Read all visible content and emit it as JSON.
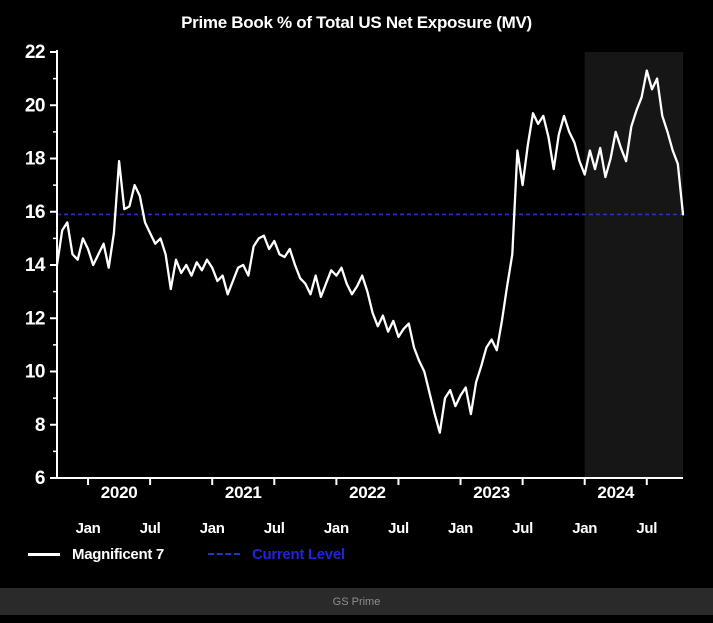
{
  "header": {
    "title": "Prime Book % of Total US Net Exposure (MV)"
  },
  "footer": {
    "label": "GS Prime"
  },
  "legend": [
    {
      "label": "Magnificent 7",
      "color": "#ffffff",
      "style": "solid"
    },
    {
      "label": "Current Level",
      "color": "#2222dd",
      "style": "dashed"
    }
  ],
  "colors": {
    "background": "#000000",
    "line": "#ffffff",
    "current_level": "#2233cc",
    "axis": "#ffffff",
    "highlight": "#161616",
    "footer_bg": "#2a2a2a",
    "footer_text": "#8e8e8e"
  },
  "chart_data": {
    "type": "line",
    "title": "Prime Book % of Total US Net Exposure (MV)",
    "xlabel": "",
    "ylabel": "",
    "ylim": [
      6,
      22
    ],
    "y_ticks": [
      6,
      8,
      10,
      12,
      14,
      16,
      18,
      20,
      22
    ],
    "y_minor_ticks": [
      7,
      9,
      11,
      13,
      15,
      17,
      19,
      21
    ],
    "grid": false,
    "legend_position": "bottom-left",
    "x_start": "2019-10",
    "x_end": "2024-10",
    "x_total_months": 60.5,
    "x_ticks": [
      {
        "m": 3,
        "label": "Jan"
      },
      {
        "m": 9,
        "label": "Jul"
      },
      {
        "m": 15,
        "label": "Jan"
      },
      {
        "m": 21,
        "label": "Jul"
      },
      {
        "m": 27,
        "label": "Jan"
      },
      {
        "m": 33,
        "label": "Jul"
      },
      {
        "m": 39,
        "label": "Jan"
      },
      {
        "m": 45,
        "label": "Jul"
      },
      {
        "m": 51,
        "label": "Jan"
      },
      {
        "m": 57,
        "label": "Jul"
      }
    ],
    "year_labels": [
      {
        "m": 6,
        "label": "2020"
      },
      {
        "m": 18,
        "label": "2021"
      },
      {
        "m": 30,
        "label": "2022"
      },
      {
        "m": 42,
        "label": "2023"
      },
      {
        "m": 54,
        "label": "2024"
      }
    ],
    "highlight_region": {
      "start_m": 51,
      "end_m": 60.5
    },
    "current_level": 15.9,
    "series": [
      {
        "name": "Magnificent 7",
        "points_per_month": 2,
        "values": [
          14.0,
          15.3,
          15.6,
          14.4,
          14.2,
          15.0,
          14.6,
          14.0,
          14.4,
          14.8,
          13.9,
          15.2,
          17.9,
          16.1,
          16.2,
          17.0,
          16.6,
          15.6,
          15.2,
          14.8,
          15.0,
          14.4,
          13.1,
          14.2,
          13.7,
          14.0,
          13.6,
          14.1,
          13.8,
          14.2,
          13.9,
          13.4,
          13.6,
          12.9,
          13.4,
          13.9,
          14.0,
          13.6,
          14.7,
          15.0,
          15.1,
          14.6,
          14.9,
          14.4,
          14.3,
          14.6,
          14.0,
          13.5,
          13.3,
          12.9,
          13.6,
          12.8,
          13.3,
          13.8,
          13.6,
          13.9,
          13.3,
          12.9,
          13.2,
          13.6,
          13.0,
          12.2,
          11.7,
          12.1,
          11.5,
          11.9,
          11.3,
          11.6,
          11.8,
          10.9,
          10.4,
          10.0,
          9.2,
          8.4,
          7.7,
          9.0,
          9.3,
          8.7,
          9.1,
          9.4,
          8.4,
          9.6,
          10.2,
          10.9,
          11.2,
          10.8,
          11.9,
          13.2,
          14.4,
          18.3,
          17.0,
          18.5,
          19.7,
          19.3,
          19.6,
          18.8,
          17.6,
          18.9,
          19.6,
          19.0,
          18.6,
          17.9,
          17.4,
          18.3,
          17.6,
          18.4,
          17.3,
          18.0,
          19.0,
          18.4,
          17.9,
          19.2,
          19.8,
          20.3,
          21.3,
          20.6,
          21.0,
          19.6,
          19.0,
          18.3,
          17.8,
          15.9
        ]
      }
    ]
  }
}
